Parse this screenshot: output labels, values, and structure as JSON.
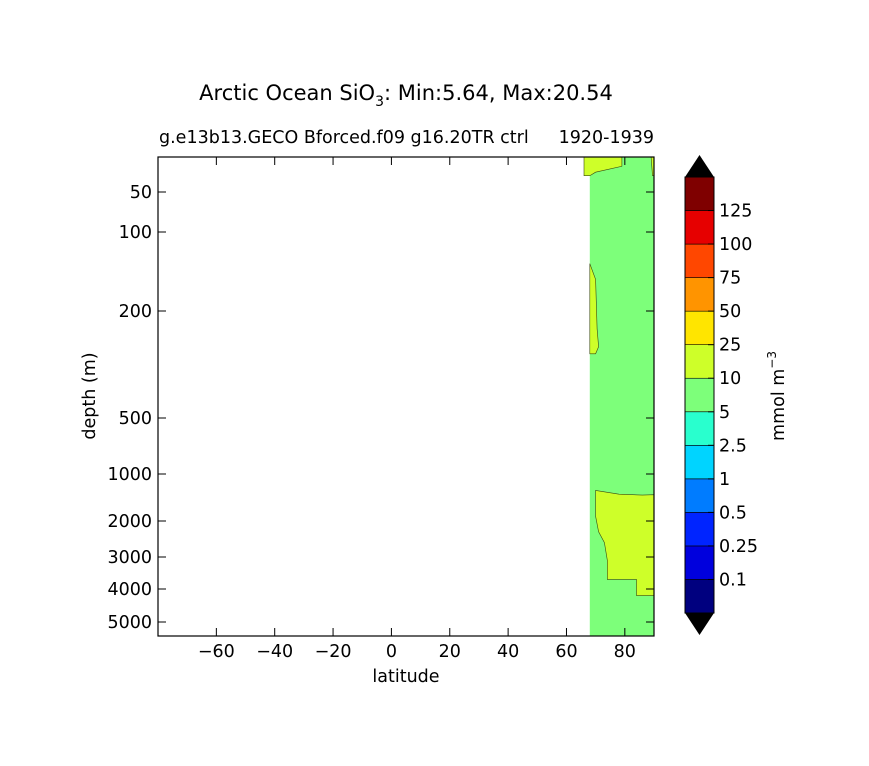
{
  "chart_data": {
    "type": "contourf",
    "title": "Arctic Ocean SiO",
    "title_subscript": "3",
    "title_suffix": ": Min:5.64, Max:20.54",
    "subtitle_left": "g.e13b13.GECO Bforced.f09 g16.20TR ctrl",
    "subtitle_right": "1920-1939",
    "xlabel": "latitude",
    "ylabel": "depth (m)",
    "xlim": [
      -80,
      90
    ],
    "ylim": [
      6000,
      20
    ],
    "y_scale": "piecewise-nonlinear",
    "xticks": [
      -60,
      -40,
      -20,
      0,
      20,
      40,
      60,
      80
    ],
    "xtick_labels": [
      "−60",
      "−40",
      "−20",
      "0",
      "20",
      "40",
      "60",
      "80"
    ],
    "yticks": [
      50,
      100,
      200,
      500,
      1000,
      2000,
      3000,
      4000,
      5000
    ],
    "ytick_labels": [
      "50",
      "100",
      "200",
      "500",
      "1000",
      "2000",
      "3000",
      "4000",
      "5000"
    ],
    "colorbar": {
      "label": "mmol m",
      "label_superscript": "−3",
      "levels": [
        0,
        0.1,
        0.25,
        0.5,
        1,
        2.5,
        5,
        10,
        25,
        50,
        75,
        100,
        125,
        150
      ],
      "tick_labels": [
        "0.1",
        "0.25",
        "0.5",
        "1",
        "2.5",
        "5",
        "10",
        "25",
        "50",
        "75",
        "100",
        "125"
      ],
      "colors": [
        "#00007f",
        "#0000dd",
        "#0024ff",
        "#007cff",
        "#00d4ff",
        "#29ffce",
        "#7dff7a",
        "#ceff29",
        "#ffe500",
        "#ff9400",
        "#ff4700",
        "#e60000",
        "#7f0000"
      ],
      "extend": "both",
      "extend_color": "#000000"
    },
    "regions": [
      {
        "name": "5-10",
        "color": "#7dff7a",
        "points": [
          [
            68,
            20
          ],
          [
            90,
            20
          ],
          [
            90,
            6000
          ],
          [
            68,
            6000
          ]
        ]
      },
      {
        "name": "10-25 upper",
        "color": "#ceff29",
        "points": [
          [
            66,
            20
          ],
          [
            79,
            20
          ],
          [
            79,
            28
          ],
          [
            70,
            33
          ],
          [
            68,
            36
          ],
          [
            66,
            36
          ]
        ]
      },
      {
        "name": "10-25 upper east",
        "color": "#ceff29",
        "points": [
          [
            89,
            20
          ],
          [
            90,
            20
          ],
          [
            90,
            36
          ],
          [
            89.5,
            36
          ]
        ]
      },
      {
        "name": "10-25 mid",
        "color": "#ceff29",
        "points": [
          [
            68,
            140
          ],
          [
            70,
            160
          ],
          [
            70.5,
            250
          ],
          [
            71,
            300
          ],
          [
            70,
            320
          ],
          [
            68,
            320
          ]
        ]
      },
      {
        "name": "10-25 deep",
        "color": "#ceff29",
        "points": [
          [
            70,
            1350
          ],
          [
            78,
            1430
          ],
          [
            86,
            1450
          ],
          [
            90,
            1440
          ],
          [
            90,
            4200
          ],
          [
            84,
            4200
          ],
          [
            84,
            3700
          ],
          [
            74,
            3700
          ],
          [
            74,
            3100
          ],
          [
            73,
            2600
          ],
          [
            71,
            2300
          ],
          [
            70,
            1900
          ]
        ]
      }
    ]
  }
}
